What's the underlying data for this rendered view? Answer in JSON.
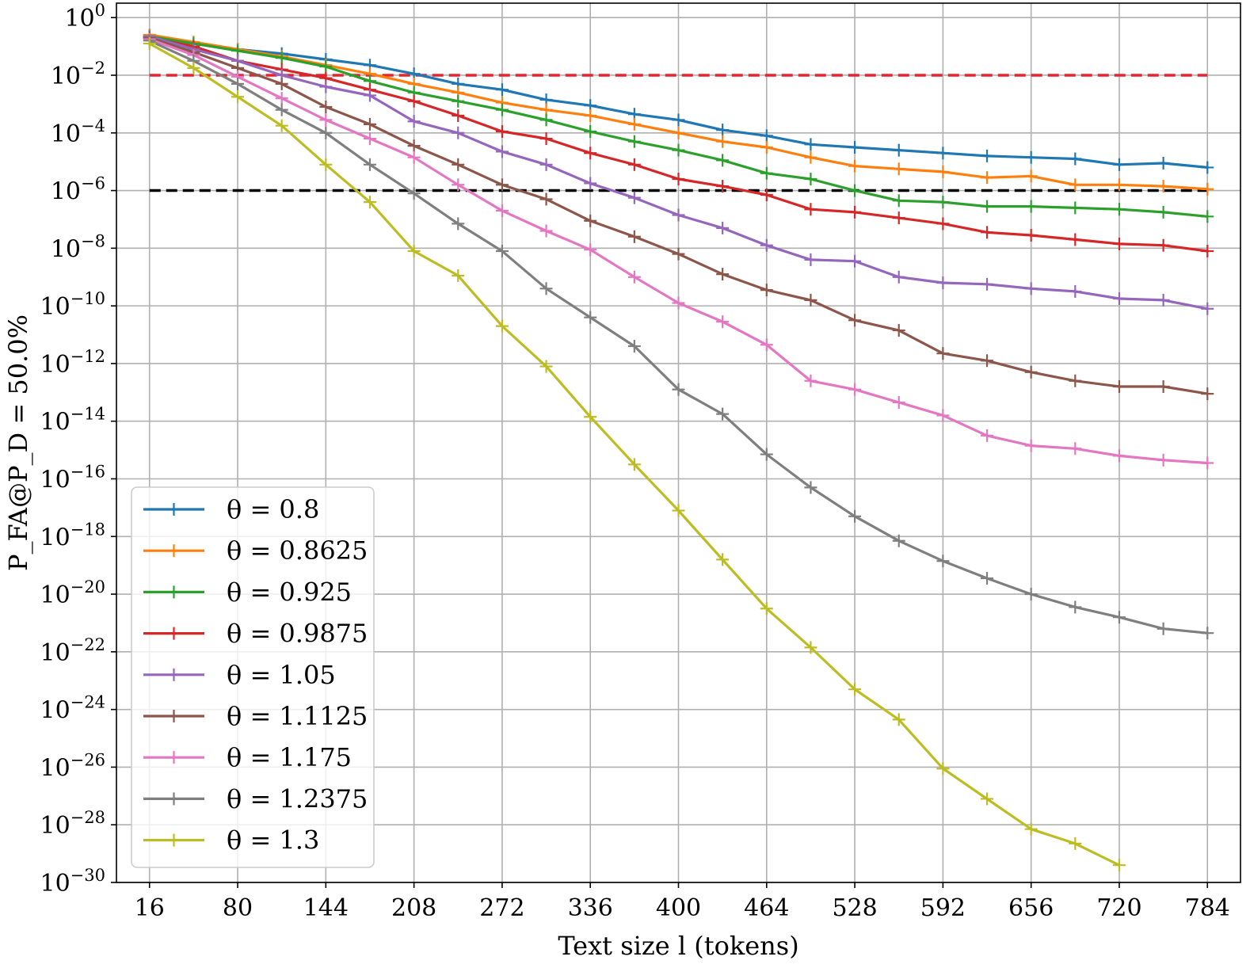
{
  "chart_data": {
    "type": "line",
    "xlabel": "Text size l (tokens)",
    "ylabel": "P_FA@P_D = 50.0%",
    "y_scale": "log",
    "xlim": [
      -8,
      808
    ],
    "ylim_exp": [
      -30,
      0.5
    ],
    "x_ticks": [
      16,
      80,
      144,
      208,
      272,
      336,
      400,
      464,
      528,
      592,
      656,
      720,
      784
    ],
    "y_tick_exponents": [
      0,
      -2,
      -4,
      -6,
      -8,
      -10,
      -12,
      -14,
      -16,
      -18,
      -20,
      -22,
      -24,
      -26,
      -28,
      -30
    ],
    "grid": true,
    "legend_position": "lower-left",
    "x": [
      16,
      48,
      80,
      112,
      144,
      176,
      208,
      240,
      272,
      304,
      336,
      368,
      400,
      432,
      464,
      496,
      528,
      560,
      592,
      624,
      656,
      688,
      720,
      752,
      784
    ],
    "reference_lines": [
      {
        "y": "1e-2",
        "exponent": -2,
        "color": "#e8222e",
        "style": "dashed"
      },
      {
        "y": "1e-6",
        "exponent": -6,
        "color": "#000000",
        "style": "dashed"
      }
    ],
    "series": [
      {
        "name": "θ = 0.8",
        "color": "#1f77b4",
        "log10_values": [
          -0.7,
          -0.9,
          -1.1,
          -1.25,
          -1.45,
          -1.65,
          -1.95,
          -2.3,
          -2.5,
          -2.85,
          -3.05,
          -3.35,
          -3.55,
          -3.9,
          -4.1,
          -4.4,
          -4.5,
          -4.6,
          -4.7,
          -4.8,
          -4.85,
          -4.9,
          -5.1,
          -5.05,
          -5.2
        ]
      },
      {
        "name": "θ = 0.8625",
        "color": "#ff7f0e",
        "log10_values": [
          -0.6,
          -0.85,
          -1.1,
          -1.35,
          -1.65,
          -1.95,
          -2.3,
          -2.6,
          -2.95,
          -3.2,
          -3.4,
          -3.7,
          -4.0,
          -4.3,
          -4.5,
          -4.85,
          -5.15,
          -5.25,
          -5.35,
          -5.55,
          -5.5,
          -5.8,
          -5.8,
          -5.85,
          -5.95
        ]
      },
      {
        "name": "θ = 0.925",
        "color": "#2ca02c",
        "log10_values": [
          -0.65,
          -0.9,
          -1.15,
          -1.4,
          -1.7,
          -2.2,
          -2.6,
          -2.9,
          -3.2,
          -3.55,
          -3.95,
          -4.3,
          -4.6,
          -4.95,
          -5.4,
          -5.6,
          -6.0,
          -6.35,
          -6.4,
          -6.55,
          -6.55,
          -6.6,
          -6.65,
          -6.75,
          -6.9
        ]
      },
      {
        "name": "θ = 0.9875",
        "color": "#d62728",
        "log10_values": [
          -0.7,
          -1.0,
          -1.5,
          -1.8,
          -2.1,
          -2.5,
          -2.9,
          -3.4,
          -3.95,
          -4.2,
          -4.7,
          -5.1,
          -5.6,
          -5.85,
          -6.15,
          -6.65,
          -6.75,
          -6.95,
          -7.15,
          -7.45,
          -7.55,
          -7.7,
          -7.85,
          -7.9,
          -8.1
        ]
      },
      {
        "name": "θ = 1.05",
        "color": "#9467bd",
        "log10_values": [
          -0.65,
          -1.1,
          -1.5,
          -2.0,
          -2.4,
          -2.7,
          -3.6,
          -4.0,
          -4.65,
          -5.1,
          -5.75,
          -6.25,
          -6.85,
          -7.3,
          -7.9,
          -8.4,
          -8.45,
          -9.0,
          -9.2,
          -9.25,
          -9.4,
          -9.5,
          -9.75,
          -9.8,
          -10.1
        ]
      },
      {
        "name": "θ = 1.1125",
        "color": "#8c564b",
        "log10_values": [
          -0.7,
          -1.2,
          -1.75,
          -2.3,
          -3.1,
          -3.7,
          -4.45,
          -5.1,
          -5.8,
          -6.3,
          -7.05,
          -7.6,
          -8.2,
          -8.9,
          -9.45,
          -9.8,
          -10.5,
          -10.85,
          -11.65,
          -11.9,
          -12.3,
          -12.6,
          -12.8,
          -12.8,
          -13.05
        ]
      },
      {
        "name": "θ = 1.175",
        "color": "#e377c2",
        "log10_values": [
          -0.75,
          -1.3,
          -2.05,
          -2.8,
          -3.55,
          -4.2,
          -4.85,
          -5.8,
          -6.7,
          -7.4,
          -8.05,
          -9.0,
          -9.9,
          -10.55,
          -11.35,
          -12.6,
          -12.9,
          -13.35,
          -13.8,
          -14.5,
          -14.85,
          -14.95,
          -15.2,
          -15.35,
          -15.45
        ]
      },
      {
        "name": "θ = 1.2375",
        "color": "#7f7f7f",
        "log10_values": [
          -0.8,
          -1.5,
          -2.3,
          -3.2,
          -4.0,
          -5.1,
          -6.1,
          -7.15,
          -8.1,
          -9.4,
          -10.4,
          -11.4,
          -12.9,
          -13.75,
          -15.15,
          -16.3,
          -17.3,
          -18.15,
          -18.85,
          -19.45,
          -20.0,
          -20.45,
          -20.8,
          -21.2,
          -21.35
        ]
      },
      {
        "name": "θ = 1.3",
        "color": "#bcbd22",
        "log10_values": [
          -0.9,
          -1.75,
          -2.75,
          -3.75,
          -5.1,
          -6.4,
          -8.1,
          -8.95,
          -10.7,
          -12.1,
          -13.85,
          -15.5,
          -17.1,
          -18.8,
          -20.5,
          -21.85,
          -23.3,
          -24.35,
          -26.05,
          -27.1,
          -28.15,
          -28.65,
          -29.4,
          null,
          null
        ]
      }
    ]
  }
}
